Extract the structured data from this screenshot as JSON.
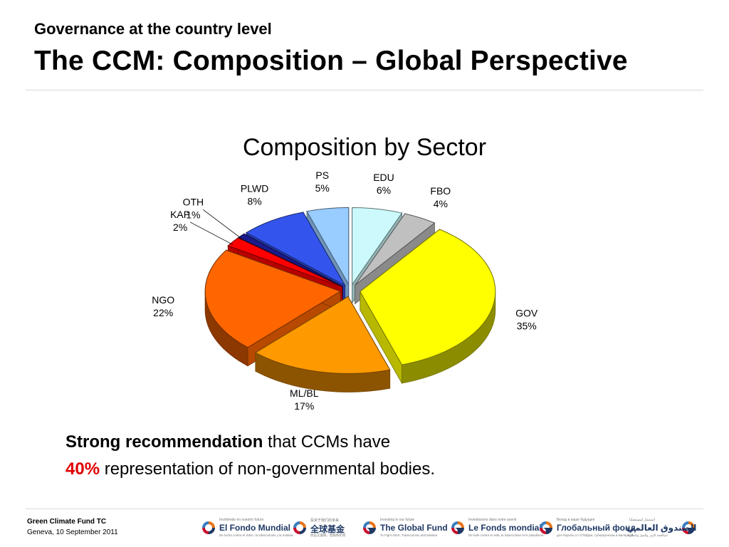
{
  "header": {
    "kicker": "Governance at the country level",
    "title": "The CCM: Composition – Global Perspective"
  },
  "chart_data": {
    "type": "pie",
    "title": "Composition by Sector",
    "labels": [
      "EDU",
      "FBO",
      "GOV",
      "ML/BL",
      "NGO",
      "KAP",
      "OTH",
      "PLWD",
      "PS"
    ],
    "values": [
      6,
      4,
      35,
      17,
      22,
      2,
      1,
      8,
      5
    ],
    "value_labels": [
      "6%",
      "4%",
      "35%",
      "17%",
      "22%",
      "2%",
      "1%",
      "8%",
      "5%"
    ],
    "colors": [
      "#ccfafc",
      "#c0c0c0",
      "#ffff00",
      "#ff9900",
      "#ff6600",
      "#ff0000",
      "#1a1a8c",
      "#3355ee",
      "#99ccff"
    ],
    "legend": "none",
    "style": "3d-exploded"
  },
  "callout": {
    "line1_bold": "Strong recommendation",
    "line1_rest": " that CCMs have",
    "line2_red": "40%",
    "line2_rest": " representation of non-governmental bodies."
  },
  "footer": {
    "org": "Green Climate Fund TC",
    "date": "Geneva, 10 September 2011",
    "logos": [
      {
        "icon": "global-fund-swirl-icon",
        "tag": "Invirtiendo en nuestro futuro",
        "name": "El Fondo Mundial",
        "sub": "De lucha contra el SIDA, la tuberculosis y la malaria"
      },
      {
        "icon": "global-fund-swirl-icon",
        "tag": "投资于我们的未来",
        "name": "全球基金",
        "sub": "抗击艾滋病、结核和疟疾"
      },
      {
        "icon": "global-fund-swirl-icon",
        "tag": "Investing in our future",
        "name": "The Global Fund",
        "sub": "To Fight AIDS, Tuberculosis and Malaria"
      },
      {
        "icon": "global-fund-swirl-icon",
        "tag": "Investissons dans notre avenir",
        "name": "Le Fonds mondial",
        "sub": "De lutte contre le sida, la tuberculose et le paludisme"
      },
      {
        "icon": "global-fund-swirl-icon",
        "tag": "Вклад в наше будущее",
        "name": "Глобальный фонд",
        "sub": "для борьбы со СПИДом, туберкулезом и малярией"
      },
      {
        "icon": "global-fund-swirl-icon",
        "tag": "استثمار لمستقبلنا",
        "name": "الصندوق العالمي",
        "sub": "لمكافحة الإيدز والسل والملاريا"
      }
    ]
  }
}
